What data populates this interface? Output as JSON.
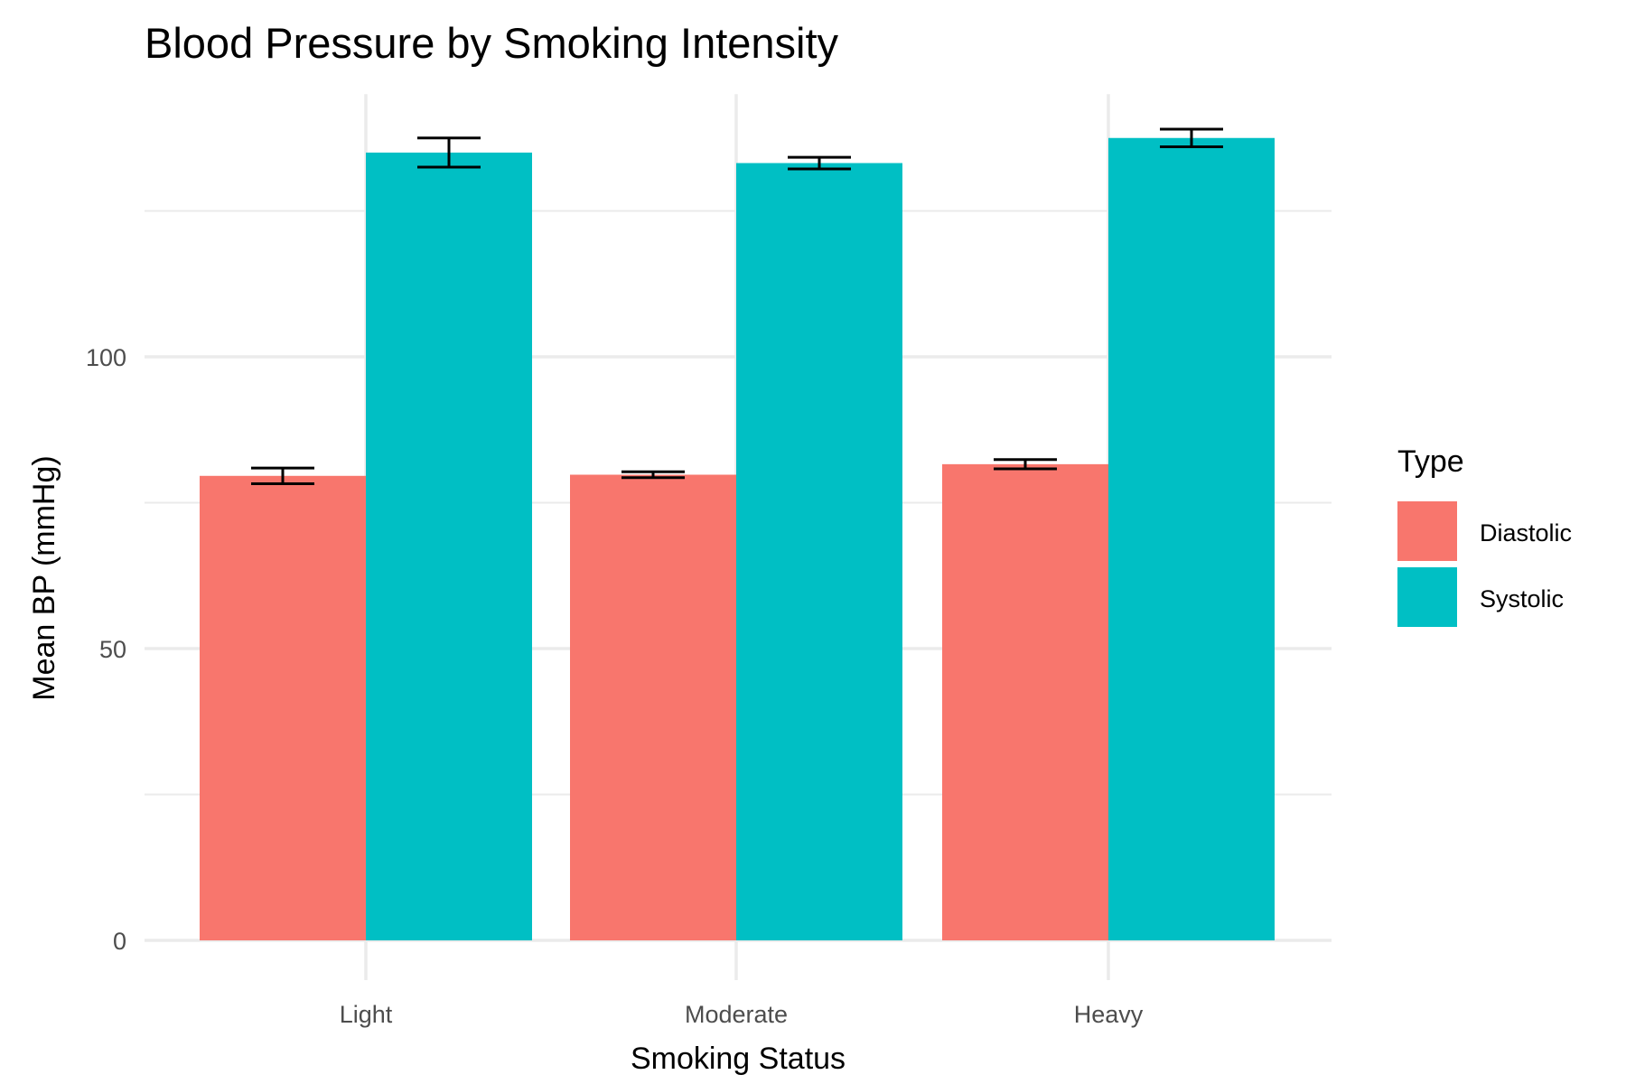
{
  "chart_data": {
    "type": "bar",
    "title": "Blood Pressure by Smoking Intensity",
    "xlabel": "Smoking Status",
    "ylabel": "Mean BP (mmHg)",
    "categories": [
      "Light",
      "Moderate",
      "Heavy"
    ],
    "ylim": [
      0,
      145
    ],
    "yticks": [
      0,
      50,
      100
    ],
    "y_minor_grid": [
      25,
      75,
      125
    ],
    "grid": true,
    "legend": {
      "title": "Type",
      "placement": "right"
    },
    "series": [
      {
        "name": "Diastolic",
        "color": "#F8766D",
        "values": [
          79.6,
          79.8,
          81.6
        ],
        "error": [
          1.35,
          0.5,
          0.8
        ]
      },
      {
        "name": "Systolic",
        "color": "#00BFC4",
        "values": [
          135.0,
          133.2,
          137.5
        ],
        "error": [
          2.5,
          1.0,
          1.5
        ]
      }
    ]
  }
}
